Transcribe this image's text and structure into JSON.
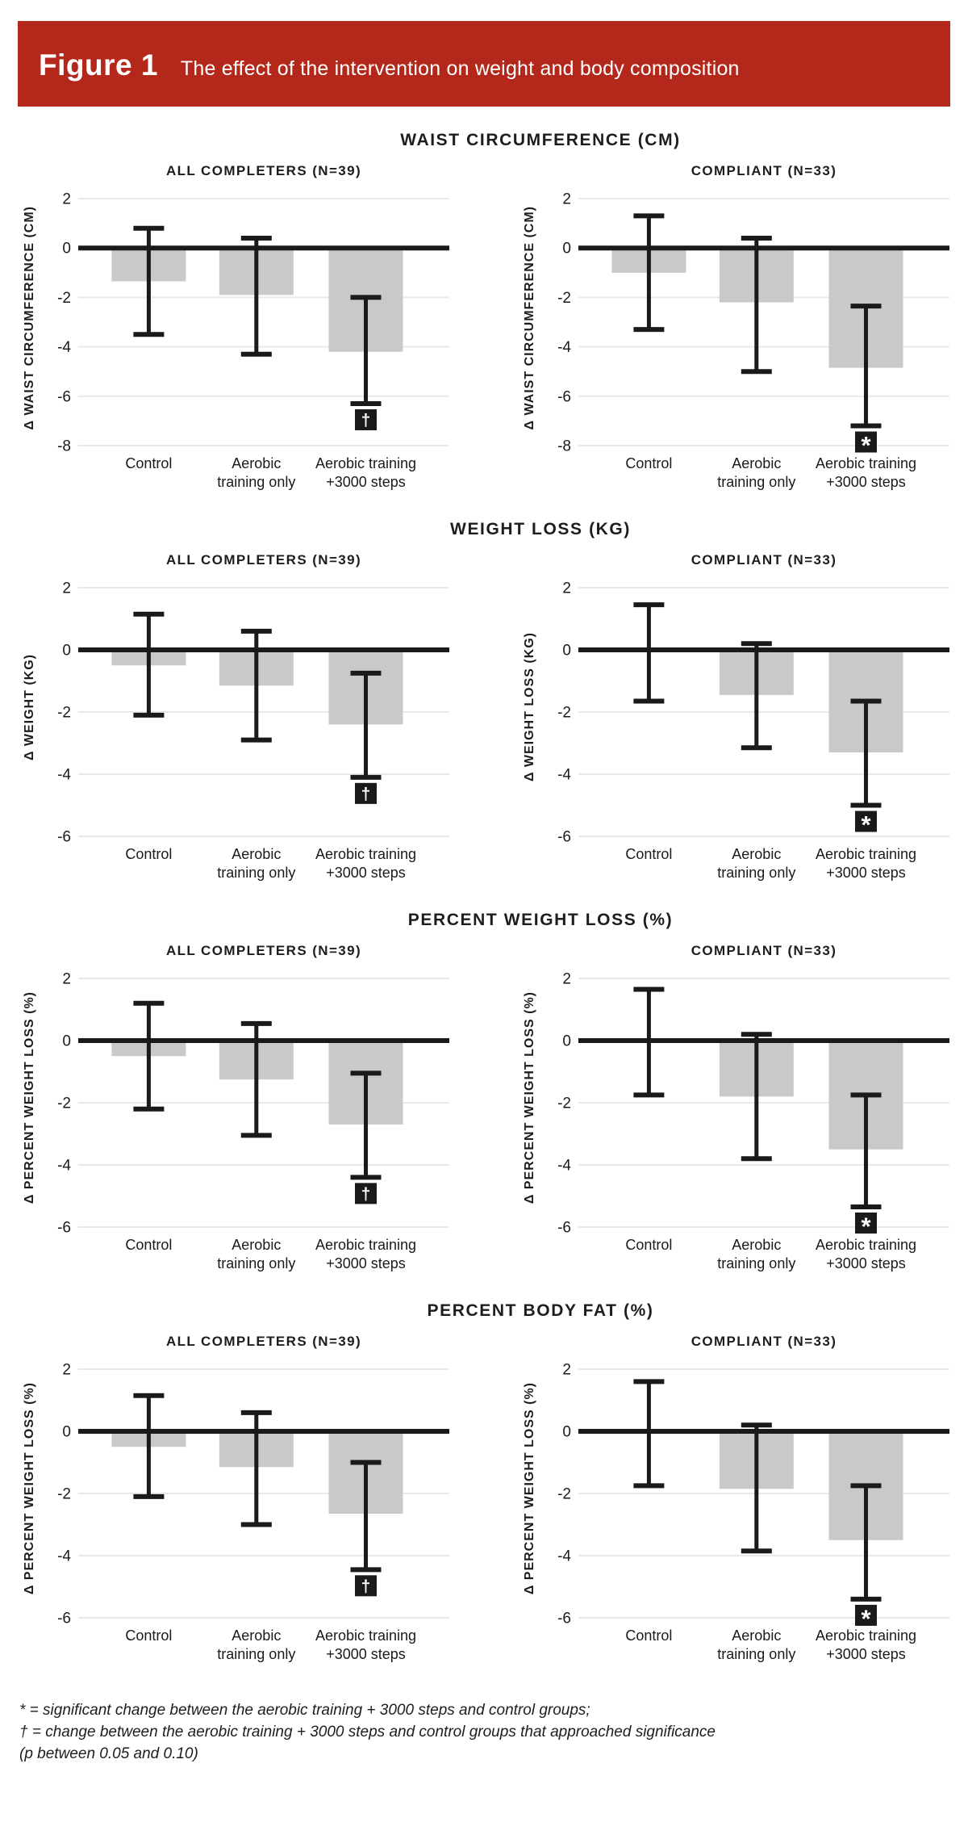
{
  "banner": {
    "label": "Figure 1",
    "title": "The effect of the intervention on weight and body composition",
    "background": "#b3281a",
    "text_color": "#ffffff"
  },
  "colors": {
    "ink": "#1a1a1a",
    "bar": "#c9c9c9",
    "grid": "#e9e9e9",
    "marker_bg": "#1a1a1a",
    "marker_fg": "#ffffff"
  },
  "category_lines": [
    [
      "Control"
    ],
    [
      "Aerobic",
      "training only"
    ],
    [
      "Aerobic training",
      "+3000 steps"
    ]
  ],
  "chart_data": [
    {
      "type": "bar",
      "title": "WAIST CIRCUMFERENCE (CM)",
      "categories": [
        "Control",
        "Aerobic training only",
        "Aerobic training +3000 steps"
      ],
      "ylim": [
        -8,
        2
      ],
      "yticks": [
        2,
        0,
        -2,
        -4,
        -6,
        -8
      ],
      "grid": true,
      "legend": "none",
      "panels": [
        {
          "subtitle": "ALL COMPLETERS (N=39)",
          "ylabel": "Δ WAIST CIRCUMFERENCE (CM)",
          "values": [
            -1.35,
            -1.9,
            -4.2
          ],
          "err_high": [
            0.8,
            0.4,
            -2.0
          ],
          "err_low": [
            -3.5,
            -4.3,
            -6.3
          ],
          "markers": [
            null,
            null,
            "†"
          ]
        },
        {
          "subtitle": "COMPLIANT (N=33)",
          "ylabel": "Δ WAIST CIRCUMFERENCE (CM)",
          "values": [
            -1.0,
            -2.2,
            -4.85
          ],
          "err_high": [
            1.3,
            0.4,
            -2.35
          ],
          "err_low": [
            -3.3,
            -5.0,
            -7.2
          ],
          "markers": [
            null,
            null,
            "*"
          ]
        }
      ]
    },
    {
      "type": "bar",
      "title": "WEIGHT LOSS (KG)",
      "categories": [
        "Control",
        "Aerobic training only",
        "Aerobic training +3000 steps"
      ],
      "ylim": [
        -6,
        2
      ],
      "yticks": [
        2,
        0,
        -2,
        -4,
        -6
      ],
      "grid": true,
      "legend": "none",
      "panels": [
        {
          "subtitle": "ALL COMPLETERS (N=39)",
          "ylabel": "Δ WEIGHT (KG)",
          "values": [
            -0.5,
            -1.15,
            -2.4
          ],
          "err_high": [
            1.15,
            0.6,
            -0.75
          ],
          "err_low": [
            -2.1,
            -2.9,
            -4.1
          ],
          "markers": [
            null,
            null,
            "†"
          ]
        },
        {
          "subtitle": "COMPLIANT (N=33)",
          "ylabel": "Δ WEIGHT LOSS (KG)",
          "values": [
            -0.05,
            -1.45,
            -3.3
          ],
          "err_high": [
            1.45,
            0.2,
            -1.65
          ],
          "err_low": [
            -1.65,
            -3.15,
            -5.0
          ],
          "markers": [
            null,
            null,
            "*"
          ]
        }
      ]
    },
    {
      "type": "bar",
      "title": "PERCENT WEIGHT LOSS (%)",
      "categories": [
        "Control",
        "Aerobic training only",
        "Aerobic training +3000 steps"
      ],
      "ylim": [
        -6,
        2
      ],
      "yticks": [
        2,
        0,
        -2,
        -4,
        -6
      ],
      "grid": true,
      "legend": "none",
      "panels": [
        {
          "subtitle": "ALL COMPLETERS (N=39)",
          "ylabel": "Δ PERCENT WEIGHT LOSS (%)",
          "values": [
            -0.5,
            -1.25,
            -2.7
          ],
          "err_high": [
            1.2,
            0.55,
            -1.05
          ],
          "err_low": [
            -2.2,
            -3.05,
            -4.4
          ],
          "markers": [
            null,
            null,
            "†"
          ]
        },
        {
          "subtitle": "COMPLIANT (N=33)",
          "ylabel": "Δ PERCENT WEIGHT LOSS (%)",
          "values": [
            -0.05,
            -1.8,
            -3.5
          ],
          "err_high": [
            1.65,
            0.2,
            -1.75
          ],
          "err_low": [
            -1.75,
            -3.8,
            -5.35
          ],
          "markers": [
            null,
            null,
            "*"
          ]
        }
      ]
    },
    {
      "type": "bar",
      "title": "PERCENT BODY FAT (%)",
      "categories": [
        "Control",
        "Aerobic training only",
        "Aerobic training +3000 steps"
      ],
      "ylim": [
        -6,
        2
      ],
      "yticks": [
        2,
        0,
        -2,
        -4,
        -6
      ],
      "grid": true,
      "legend": "none",
      "panels": [
        {
          "subtitle": "ALL COMPLETERS (N=39)",
          "ylabel": "Δ PERCENT WEIGHT LOSS (%)",
          "values": [
            -0.5,
            -1.15,
            -2.65
          ],
          "err_high": [
            1.15,
            0.6,
            -1.0
          ],
          "err_low": [
            -2.1,
            -3.0,
            -4.45
          ],
          "markers": [
            null,
            null,
            "†"
          ]
        },
        {
          "subtitle": "COMPLIANT (N=33)",
          "ylabel": "Δ PERCENT WEIGHT LOSS (%)",
          "values": [
            -0.05,
            -1.85,
            -3.5
          ],
          "err_high": [
            1.6,
            0.2,
            -1.75
          ],
          "err_low": [
            -1.75,
            -3.85,
            -5.4
          ],
          "markers": [
            null,
            null,
            "*"
          ]
        }
      ]
    }
  ],
  "footnote": {
    "lines": [
      "* = significant change between the aerobic training + 3000 steps and control groups;",
      "† = change between the aerobic training + 3000 steps and control groups that approached significance",
      "(p between 0.05 and 0.10)"
    ]
  }
}
